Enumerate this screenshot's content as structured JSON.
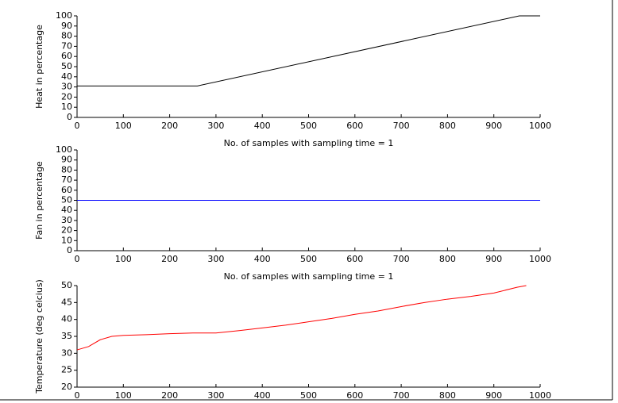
{
  "chart_data": [
    {
      "type": "line",
      "xlabel": "No. of samples with sampling time = 1",
      "ylabel": "Heat in percentage",
      "x": [
        0,
        260,
        955,
        1000
      ],
      "values": [
        31,
        31,
        100,
        100
      ],
      "color": "#000000",
      "xlim": [
        0,
        1000
      ],
      "xticks": [
        0,
        100,
        200,
        300,
        400,
        500,
        600,
        700,
        800,
        900,
        1000
      ],
      "ylim": [
        0,
        100
      ],
      "yticks": [
        0,
        10,
        20,
        30,
        40,
        50,
        60,
        70,
        80,
        90,
        100
      ]
    },
    {
      "type": "line",
      "xlabel": "No. of samples with sampling time = 1",
      "ylabel": "Fan in percentage",
      "x": [
        0,
        1000
      ],
      "values": [
        50,
        50
      ],
      "color": "#0000ff",
      "xlim": [
        0,
        1000
      ],
      "xticks": [
        0,
        100,
        200,
        300,
        400,
        500,
        600,
        700,
        800,
        900,
        1000
      ],
      "ylim": [
        0,
        100
      ],
      "yticks": [
        0,
        10,
        20,
        30,
        40,
        50,
        60,
        70,
        80,
        90,
        100
      ]
    },
    {
      "type": "line",
      "ylabel": "Temperature (deg celcius)",
      "x": [
        0,
        25,
        50,
        75,
        100,
        150,
        200,
        250,
        300,
        350,
        400,
        450,
        500,
        550,
        600,
        650,
        700,
        750,
        800,
        850,
        900,
        950,
        970
      ],
      "values": [
        31,
        32,
        34,
        35,
        35.3,
        35.5,
        35.8,
        36,
        36,
        36.7,
        37.5,
        38.3,
        39.3,
        40.3,
        41.5,
        42.5,
        43.8,
        45,
        46,
        46.8,
        47.8,
        49.5,
        50
      ],
      "color": "#ff0000",
      "xlim": [
        0,
        1000
      ],
      "xticks": [
        0,
        100,
        200,
        300,
        400,
        500,
        600,
        700,
        800,
        900,
        1000
      ],
      "ylim": [
        20,
        50
      ],
      "yticks": [
        20,
        25,
        30,
        35,
        40,
        45,
        50
      ]
    }
  ]
}
